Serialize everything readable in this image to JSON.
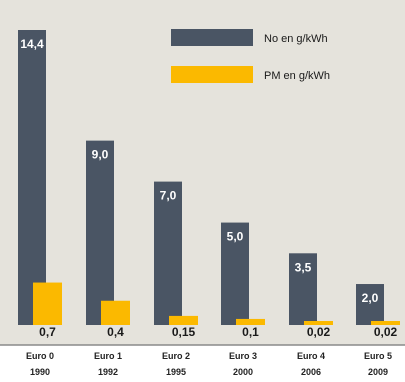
{
  "chart_data": {
    "type": "bar",
    "categories": [
      {
        "line1": "Euro 0",
        "line2": "1990"
      },
      {
        "line1": "Euro 1",
        "line2": "1992"
      },
      {
        "line1": "Euro 2",
        "line2": "1995"
      },
      {
        "line1": "Euro 3",
        "line2": "2000"
      },
      {
        "line1": "Euro 4",
        "line2": "2006"
      },
      {
        "line1": "Euro 5",
        "line2": "2009"
      }
    ],
    "series": [
      {
        "name": "No en g/kWh",
        "values": [
          14.4,
          9.0,
          7.0,
          5.0,
          3.5,
          2.0
        ],
        "labels": [
          "14,4",
          "9,0",
          "7,0",
          "5,0",
          "3,5",
          "2,0"
        ],
        "color": "#4a5564"
      },
      {
        "name": "PM en g/kWh",
        "values": [
          0.7,
          0.4,
          0.15,
          0.1,
          0.02,
          0.02
        ],
        "labels": [
          "0,7",
          "0,4",
          "0,15",
          "0,1",
          "0,02",
          "0,02"
        ],
        "color": "#fbb900"
      }
    ],
    "legend_position": "top-right",
    "background_color": "#e5e3dc",
    "grid": false
  }
}
